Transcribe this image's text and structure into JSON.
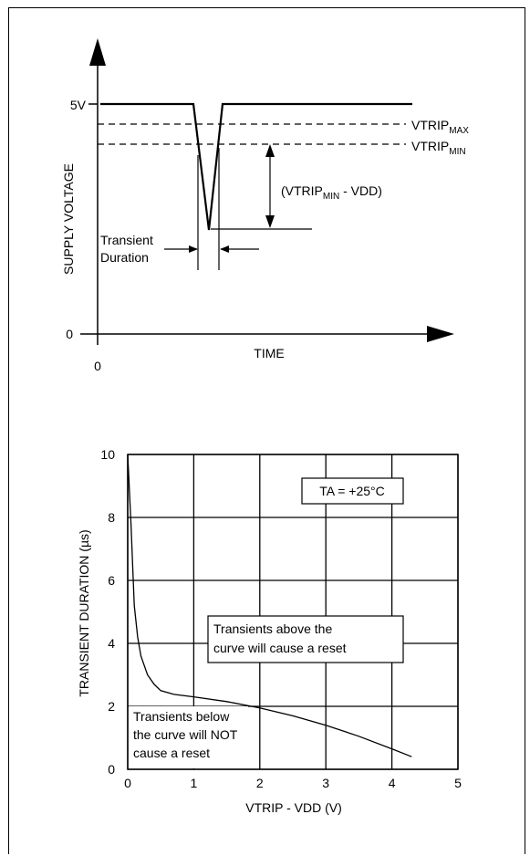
{
  "diagram": {
    "y_axis_label": "SUPPLY VOLTAGE",
    "x_axis_label": "TIME",
    "y_tick_5v": "5V",
    "y_tick_0": "0",
    "x_tick_0": "0",
    "vtrip_max": {
      "main": "VTRIP",
      "sub": "MAX"
    },
    "vtrip_min": {
      "main": "VTRIP",
      "sub": "MIN"
    },
    "difference_label": {
      "open": "(VTRIP",
      "sub": "MIN",
      "rest": " - VDD)"
    },
    "transient_label_line1": "Transient",
    "transient_label_line2": "Duration"
  },
  "chart_data": {
    "type": "line",
    "title": "",
    "xlabel": {
      "main": "VTRIP - VDD (V)"
    },
    "ylabel": "TRANSIENT DURATION (µs)",
    "xlim": [
      0,
      5
    ],
    "ylim": [
      0,
      10
    ],
    "x_ticks": [
      "0",
      "1",
      "2",
      "3",
      "4",
      "5"
    ],
    "y_ticks": [
      "0",
      "2",
      "4",
      "6",
      "8",
      "10"
    ],
    "grid": true,
    "condition_label": "TA = +25°C",
    "annotation_above": [
      "Transients above the",
      "curve will cause a reset"
    ],
    "annotation_below": [
      "Transients below",
      "the curve will NOT",
      "cause a reset"
    ],
    "series": [
      {
        "x": [
          0.0,
          0.05,
          0.08,
          0.1,
          0.15,
          0.2,
          0.3,
          0.4,
          0.5,
          0.7,
          1.0,
          1.5,
          2.0,
          2.5,
          3.0,
          3.5,
          4.0,
          4.3
        ],
        "y": [
          10.0,
          7.8,
          6.2,
          5.2,
          4.2,
          3.6,
          3.0,
          2.7,
          2.5,
          2.38,
          2.3,
          2.15,
          1.95,
          1.7,
          1.4,
          1.05,
          0.65,
          0.4
        ]
      }
    ]
  }
}
